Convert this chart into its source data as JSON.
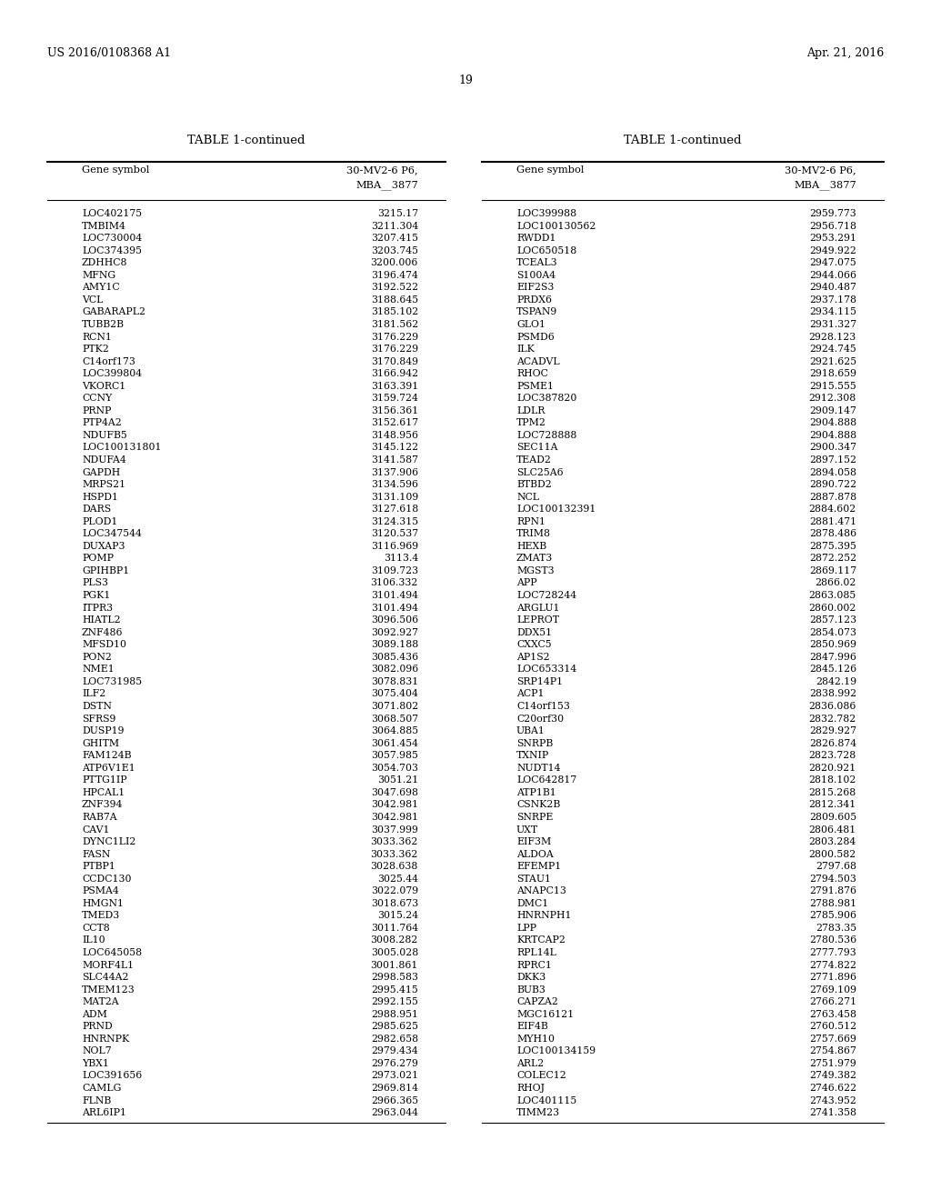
{
  "header_left": "US 2016/0108368 A1",
  "header_right": "Apr. 21, 2016",
  "page_number": "19",
  "table_title": "TABLE 1-continued",
  "col_gene": "Gene symbol",
  "col_val1": "30-MV2-6 P6,",
  "col_val2": "MBA__3877",
  "left_data": [
    [
      "LOC402175",
      "3215.17"
    ],
    [
      "TMBIM4",
      "3211.304"
    ],
    [
      "LOC730004",
      "3207.415"
    ],
    [
      "LOC374395",
      "3203.745"
    ],
    [
      "ZDHHC8",
      "3200.006"
    ],
    [
      "MFNG",
      "3196.474"
    ],
    [
      "AMY1C",
      "3192.522"
    ],
    [
      "VCL",
      "3188.645"
    ],
    [
      "GABARAPL2",
      "3185.102"
    ],
    [
      "TUBB2B",
      "3181.562"
    ],
    [
      "RCN1",
      "3176.229"
    ],
    [
      "PTK2",
      "3176.229"
    ],
    [
      "C14orf173",
      "3170.849"
    ],
    [
      "LOC399804",
      "3166.942"
    ],
    [
      "VKORC1",
      "3163.391"
    ],
    [
      "CCNY",
      "3159.724"
    ],
    [
      "PRNP",
      "3156.361"
    ],
    [
      "PTP4A2",
      "3152.617"
    ],
    [
      "NDUFB5",
      "3148.956"
    ],
    [
      "LOC100131801",
      "3145.122"
    ],
    [
      "NDUFA4",
      "3141.587"
    ],
    [
      "GAPDH",
      "3137.906"
    ],
    [
      "MRPS21",
      "3134.596"
    ],
    [
      "HSPD1",
      "3131.109"
    ],
    [
      "DARS",
      "3127.618"
    ],
    [
      "PLOD1",
      "3124.315"
    ],
    [
      "LOC347544",
      "3120.537"
    ],
    [
      "DUXAP3",
      "3116.969"
    ],
    [
      "POMP",
      "3113.4"
    ],
    [
      "GPIHBP1",
      "3109.723"
    ],
    [
      "PLS3",
      "3106.332"
    ],
    [
      "PGK1",
      "3101.494"
    ],
    [
      "ITPR3",
      "3101.494"
    ],
    [
      "HIATL2",
      "3096.506"
    ],
    [
      "ZNF486",
      "3092.927"
    ],
    [
      "MFSD10",
      "3089.188"
    ],
    [
      "PON2",
      "3085.436"
    ],
    [
      "NME1",
      "3082.096"
    ],
    [
      "LOC731985",
      "3078.831"
    ],
    [
      "ILF2",
      "3075.404"
    ],
    [
      "DSTN",
      "3071.802"
    ],
    [
      "SFRS9",
      "3068.507"
    ],
    [
      "DUSP19",
      "3064.885"
    ],
    [
      "GHITM",
      "3061.454"
    ],
    [
      "FAM124B",
      "3057.985"
    ],
    [
      "ATP6V1E1",
      "3054.703"
    ],
    [
      "PTTG1IP",
      "3051.21"
    ],
    [
      "HPCAL1",
      "3047.698"
    ],
    [
      "ZNF394",
      "3042.981"
    ],
    [
      "RAB7A",
      "3042.981"
    ],
    [
      "CAV1",
      "3037.999"
    ],
    [
      "DYNC1LI2",
      "3033.362"
    ],
    [
      "FASN",
      "3033.362"
    ],
    [
      "PTBP1",
      "3028.638"
    ],
    [
      "CCDC130",
      "3025.44"
    ],
    [
      "PSMA4",
      "3022.079"
    ],
    [
      "HMGN1",
      "3018.673"
    ],
    [
      "TMED3",
      "3015.24"
    ],
    [
      "CCT8",
      "3011.764"
    ],
    [
      "IL10",
      "3008.282"
    ],
    [
      "LOC645058",
      "3005.028"
    ],
    [
      "MORF4L1",
      "3001.861"
    ],
    [
      "SLC44A2",
      "2998.583"
    ],
    [
      "TMEM123",
      "2995.415"
    ],
    [
      "MAT2A",
      "2992.155"
    ],
    [
      "ADM",
      "2988.951"
    ],
    [
      "PRND",
      "2985.625"
    ],
    [
      "HNRNPK",
      "2982.658"
    ],
    [
      "NOL7",
      "2979.434"
    ],
    [
      "YBX1",
      "2976.279"
    ],
    [
      "LOC391656",
      "2973.021"
    ],
    [
      "CAMLG",
      "2969.814"
    ],
    [
      "FLNB",
      "2966.365"
    ],
    [
      "ARL6IP1",
      "2963.044"
    ]
  ],
  "right_data": [
    [
      "LOC399988",
      "2959.773"
    ],
    [
      "LOC100130562",
      "2956.718"
    ],
    [
      "RWDD1",
      "2953.291"
    ],
    [
      "LOC650518",
      "2949.922"
    ],
    [
      "TCEAL3",
      "2947.075"
    ],
    [
      "S100A4",
      "2944.066"
    ],
    [
      "EIF2S3",
      "2940.487"
    ],
    [
      "PRDX6",
      "2937.178"
    ],
    [
      "TSPAN9",
      "2934.115"
    ],
    [
      "GLO1",
      "2931.327"
    ],
    [
      "PSMD6",
      "2928.123"
    ],
    [
      "ILK",
      "2924.745"
    ],
    [
      "ACADVL",
      "2921.625"
    ],
    [
      "RHOC",
      "2918.659"
    ],
    [
      "PSME1",
      "2915.555"
    ],
    [
      "LOC387820",
      "2912.308"
    ],
    [
      "LDLR",
      "2909.147"
    ],
    [
      "TPM2",
      "2904.888"
    ],
    [
      "LOC728888",
      "2904.888"
    ],
    [
      "SEC11A",
      "2900.347"
    ],
    [
      "TEAD2",
      "2897.152"
    ],
    [
      "SLC25A6",
      "2894.058"
    ],
    [
      "BTBD2",
      "2890.722"
    ],
    [
      "NCL",
      "2887.878"
    ],
    [
      "LOC100132391",
      "2884.602"
    ],
    [
      "RPN1",
      "2881.471"
    ],
    [
      "TRIM8",
      "2878.486"
    ],
    [
      "HEXB",
      "2875.395"
    ],
    [
      "ZMAT3",
      "2872.252"
    ],
    [
      "MGST3",
      "2869.117"
    ],
    [
      "APP",
      "2866.02"
    ],
    [
      "LOC728244",
      "2863.085"
    ],
    [
      "ARGLU1",
      "2860.002"
    ],
    [
      "LEPROT",
      "2857.123"
    ],
    [
      "DDX51",
      "2854.073"
    ],
    [
      "CXXC5",
      "2850.969"
    ],
    [
      "AP1S2",
      "2847.996"
    ],
    [
      "LOC653314",
      "2845.126"
    ],
    [
      "SRP14P1",
      "2842.19"
    ],
    [
      "ACP1",
      "2838.992"
    ],
    [
      "C14orf153",
      "2836.086"
    ],
    [
      "C20orf30",
      "2832.782"
    ],
    [
      "UBA1",
      "2829.927"
    ],
    [
      "SNRPB",
      "2826.874"
    ],
    [
      "TXNIP",
      "2823.728"
    ],
    [
      "NUDT14",
      "2820.921"
    ],
    [
      "LOC642817",
      "2818.102"
    ],
    [
      "ATP1B1",
      "2815.268"
    ],
    [
      "CSNK2B",
      "2812.341"
    ],
    [
      "SNRPE",
      "2809.605"
    ],
    [
      "UXT",
      "2806.481"
    ],
    [
      "EIF3M",
      "2803.284"
    ],
    [
      "ALDOA",
      "2800.582"
    ],
    [
      "EFEMP1",
      "2797.68"
    ],
    [
      "STAU1",
      "2794.503"
    ],
    [
      "ANAPC13",
      "2791.876"
    ],
    [
      "DMC1",
      "2788.981"
    ],
    [
      "HNRNPH1",
      "2785.906"
    ],
    [
      "LPP",
      "2783.35"
    ],
    [
      "KRTCAP2",
      "2780.536"
    ],
    [
      "RPL14L",
      "2777.793"
    ],
    [
      "RPRC1",
      "2774.822"
    ],
    [
      "DKK3",
      "2771.896"
    ],
    [
      "BUB3",
      "2769.109"
    ],
    [
      "CAPZA2",
      "2766.271"
    ],
    [
      "MGC16121",
      "2763.458"
    ],
    [
      "EIF4B",
      "2760.512"
    ],
    [
      "MYH10",
      "2757.669"
    ],
    [
      "LOC100134159",
      "2754.867"
    ],
    [
      "ARL2",
      "2751.979"
    ],
    [
      "COLEC12",
      "2749.382"
    ],
    [
      "RHOJ",
      "2746.622"
    ],
    [
      "LOC401115",
      "2743.952"
    ],
    [
      "TIMM23",
      "2741.358"
    ]
  ],
  "bg_color": "#ffffff",
  "text_color": "#000000",
  "line_color": "#000000",
  "header_fontsize": 9.0,
  "title_fontsize": 9.5,
  "data_fontsize": 7.8,
  "col_header_fontsize": 8.2
}
